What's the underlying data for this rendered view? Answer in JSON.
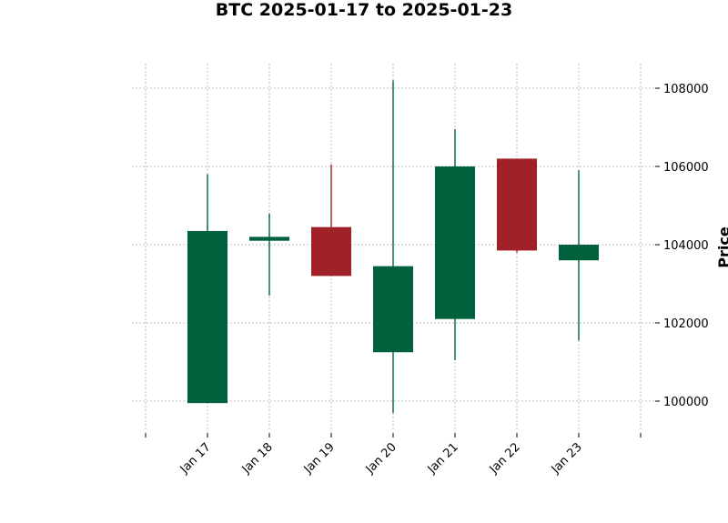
{
  "chart_data": {
    "type": "candlestick",
    "title": "BTC 2025-01-17 to 2025-01-23",
    "xlabel": "",
    "ylabel": "Price",
    "y_axis_side": "right",
    "ylim": [
      99300,
      108600
    ],
    "yticks": [
      100000,
      102000,
      104000,
      106000,
      108000
    ],
    "grid": true,
    "categories": [
      "Jan 17",
      "Jan 18",
      "Jan 19",
      "Jan 20",
      "Jan 21",
      "Jan 22",
      "Jan 23"
    ],
    "candles": [
      {
        "date": "Jan 17",
        "open": 99950,
        "high": 105800,
        "low": 99950,
        "close": 104350
      },
      {
        "date": "Jan 18",
        "open": 104100,
        "high": 104800,
        "low": 102700,
        "close": 104200
      },
      {
        "date": "Jan 19",
        "open": 104450,
        "high": 106050,
        "low": 103200,
        "close": 103200
      },
      {
        "date": "Jan 20",
        "open": 101250,
        "high": 108200,
        "low": 99700,
        "close": 103450
      },
      {
        "date": "Jan 21",
        "open": 102100,
        "high": 106950,
        "low": 101050,
        "close": 106000
      },
      {
        "date": "Jan 22",
        "open": 106200,
        "high": 106200,
        "low": 103800,
        "close": 103850
      },
      {
        "date": "Jan 23",
        "open": 103600,
        "high": 105900,
        "low": 101550,
        "close": 104000
      }
    ],
    "colors": {
      "up": "#00613c",
      "down": "#a02128"
    }
  }
}
